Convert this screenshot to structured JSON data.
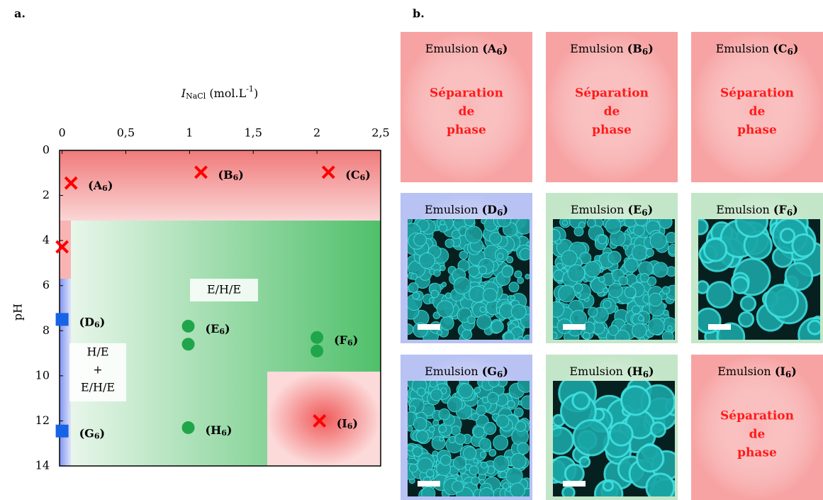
{
  "panel_labels": [
    "a.",
    "b."
  ],
  "chart_data": {
    "type": "scatter",
    "xlabel": [
      "I",
      "NaCl",
      " (mol.L",
      "-1",
      ")"
    ],
    "ylabel": "pH",
    "xlim": [
      -0.02,
      2.5
    ],
    "xticks": [
      0,
      {
        "value": 0.5,
        "label": "0,5"
      },
      1,
      {
        "value": 1.5,
        "label": "1,5"
      },
      2,
      {
        "value": 2.5,
        "label": "2,5"
      }
    ],
    "ylim": [
      0,
      14
    ],
    "yticks": [
      0,
      2,
      4,
      6,
      8,
      10,
      12,
      14
    ],
    "y_inverted": true,
    "annotations": [
      [
        "E/H/E"
      ],
      [
        "H/E",
        "+",
        "E/H/E"
      ]
    ],
    "series": [
      {
        "marker": "x",
        "color": "#ff0000",
        "x": [
          0.07,
          1.09,
          2.09,
          0.0,
          2.02
        ],
        "y": [
          1.45,
          0.97,
          0.97,
          4.28,
          12.0
        ],
        "labels": [
          [
            "(A",
            "6",
            ")"
          ],
          [
            "(B",
            "6",
            ")"
          ],
          [
            "(C",
            "6",
            ")"
          ],
          null,
          [
            "(I",
            "6",
            ")"
          ]
        ]
      },
      {
        "marker": "square",
        "color": "#1763e6",
        "x": [
          0.0,
          0.0
        ],
        "y": [
          7.5,
          12.45
        ],
        "labels": [
          [
            "(D",
            "6",
            ")"
          ],
          [
            "(G",
            "6",
            ")"
          ]
        ]
      },
      {
        "marker": "circle",
        "color": "#1fa64a",
        "x": [
          0.99,
          0.99,
          0.99,
          2.0,
          2.0
        ],
        "y": [
          7.8,
          8.6,
          12.3,
          8.3,
          8.9
        ],
        "labels": [
          [
            "(E",
            "6",
            ")"
          ],
          null,
          [
            "(H",
            "6",
            ")"
          ],
          [
            "(F",
            "6",
            ")"
          ],
          null
        ]
      }
    ]
  },
  "panel_b": {
    "tiles": [
      {
        "title": [
          "Emulsion ",
          "(A",
          "6",
          ")"
        ],
        "color": "#f7a3a3",
        "text": [
          "Séparation",
          "de",
          "phase"
        ]
      },
      {
        "title": [
          "Emulsion ",
          "(B",
          "6",
          ")"
        ],
        "color": "#f7a3a3",
        "text": [
          "Séparation",
          "de",
          "phase"
        ]
      },
      {
        "title": [
          "Emulsion ",
          "(C",
          "6",
          ")"
        ],
        "color": "#f7a3a3",
        "text": [
          "Séparation",
          "de",
          "phase"
        ]
      },
      {
        "title": [
          "Emulsion ",
          "(D",
          "6",
          ")"
        ],
        "color": "#b8c2f3"
      },
      {
        "title": [
          "Emulsion ",
          "(E",
          "6",
          ")"
        ],
        "color": "#c3e6c8"
      },
      {
        "title": [
          "Emulsion ",
          "(F",
          "6",
          ")"
        ],
        "color": "#c3e6c8"
      },
      {
        "title": [
          "Emulsion ",
          "(G",
          "6",
          ")"
        ],
        "color": "#b8c2f3"
      },
      {
        "title": [
          "Emulsion ",
          "(H",
          "6",
          ")"
        ],
        "color": "#c3e6c8"
      },
      {
        "title": [
          "Emulsion ",
          "(I",
          "6",
          ")"
        ],
        "color": "#f7a3a3",
        "text": [
          "Séparation",
          "de",
          "phase"
        ]
      }
    ]
  }
}
